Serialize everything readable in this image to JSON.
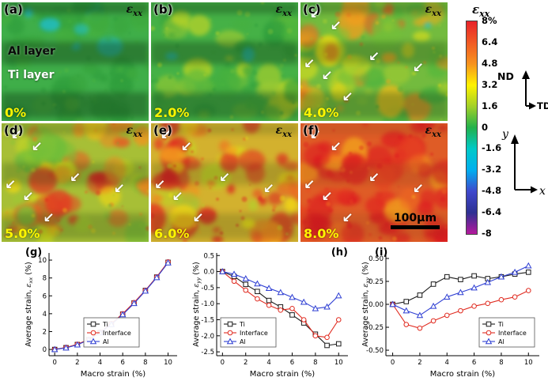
{
  "panels": [
    {
      "letter": "(a)",
      "eps": "ε",
      "eps_sub": "xx",
      "strain": "0%"
    },
    {
      "letter": "(b)",
      "eps": "ε",
      "eps_sub": "xx",
      "strain": "2.0%"
    },
    {
      "letter": "(c)",
      "eps": "ε",
      "eps_sub": "xx",
      "strain": "4.0%"
    },
    {
      "letter": "(d)",
      "eps": "ε",
      "eps_sub": "xx",
      "strain": "5.0%"
    },
    {
      "letter": "(e)",
      "eps": "ε",
      "eps_sub": "xx",
      "strain": "6.0%"
    },
    {
      "letter": "(f)",
      "eps": "ε",
      "eps_sub": "xx",
      "strain": "8.0%"
    }
  ],
  "annotations": {
    "al_layer": "Al layer",
    "ti_layer": "Ti layer",
    "scale_bar": "100μm",
    "arrow_icon": "↙"
  },
  "colorbar": {
    "sym": "ε",
    "sub": "xx",
    "ticks": [
      "8%",
      "6.4",
      "4.8",
      "3.2",
      "1.6",
      "0",
      "-1.6",
      "-3.2",
      "-4.8",
      "-6.4",
      "-8"
    ],
    "colors": [
      "#e8232a",
      "#f15a24",
      "#f7931e",
      "#fff200",
      "#a2d028",
      "#22b14c",
      "#00c9c8",
      "#00aeef",
      "#3f48cc",
      "#2e3192",
      "#b5199d"
    ]
  },
  "axes_legend": {
    "nd": "ND",
    "td": "TD",
    "y": "y",
    "x": "x"
  },
  "chart_data": [
    {
      "id": "g",
      "type": "line",
      "letter": "(g)",
      "letter_pos": "tl",
      "legend_pos": "ml",
      "xlabel": "Macro strain (%)",
      "ylabel_prefix": "Average strain, ",
      "ylabel_sym": "ε",
      "ylabel_sub": "xx",
      "ylabel_suffix": " (%)",
      "x": [
        0,
        1,
        2,
        3,
        4,
        5,
        6,
        7,
        8,
        9,
        10
      ],
      "series": [
        {
          "name": "Ti",
          "color": "#1a1a1a",
          "marker": "square",
          "values": [
            0,
            0.2,
            0.55,
            1.1,
            1.9,
            2.85,
            3.95,
            5.2,
            6.6,
            8.1,
            9.75
          ]
        },
        {
          "name": "Interface",
          "color": "#e02b20",
          "marker": "circle",
          "values": [
            0,
            0.22,
            0.58,
            1.12,
            1.92,
            2.9,
            4.0,
            5.25,
            6.62,
            8.12,
            9.8
          ]
        },
        {
          "name": "Al",
          "color": "#2f3fd3",
          "marker": "triangle",
          "values": [
            0,
            0.18,
            0.52,
            1.08,
            1.88,
            2.8,
            3.9,
            5.15,
            6.55,
            8.05,
            9.7
          ]
        }
      ],
      "xlim": [
        -0.5,
        10.8
      ],
      "ylim": [
        -0.7,
        10.8
      ],
      "xtick_vals": [
        0,
        2,
        4,
        6,
        8,
        10
      ],
      "xtick_labels": [
        "0",
        "2",
        "4",
        "6",
        "8",
        "10"
      ],
      "ytick_vals": [
        0,
        2,
        4,
        6,
        8,
        10
      ],
      "ytick_labels": [
        "0",
        "2",
        "4",
        "6",
        "8",
        "10"
      ],
      "grid": false,
      "legend_position": "center-left-lower"
    },
    {
      "id": "h",
      "type": "line",
      "letter": "(h)",
      "letter_pos": "tr",
      "legend_pos": "bl",
      "xlabel": "Macro strain (%)",
      "ylabel_prefix": "Average strain, ",
      "ylabel_sym": "ε",
      "ylabel_sub": "yy",
      "ylabel_suffix": " (%)",
      "x": [
        0,
        1,
        2,
        3,
        4,
        5,
        6,
        7,
        8,
        9,
        10
      ],
      "series": [
        {
          "name": "Ti",
          "color": "#1a1a1a",
          "marker": "square",
          "values": [
            0,
            -0.15,
            -0.4,
            -0.62,
            -0.9,
            -1.1,
            -1.35,
            -1.6,
            -1.95,
            -2.3,
            -2.25
          ]
        },
        {
          "name": "Interface",
          "color": "#e02b20",
          "marker": "circle",
          "values": [
            0,
            -0.3,
            -0.58,
            -0.85,
            -1.05,
            -1.2,
            -1.15,
            -1.5,
            -2.0,
            -2.05,
            -1.5
          ]
        },
        {
          "name": "Al",
          "color": "#2f3fd3",
          "marker": "triangle",
          "values": [
            0,
            -0.08,
            -0.22,
            -0.38,
            -0.52,
            -0.65,
            -0.8,
            -0.95,
            -1.15,
            -1.1,
            -0.75
          ]
        }
      ],
      "xlim": [
        -0.5,
        10.8
      ],
      "ylim": [
        -2.62,
        0.58
      ],
      "xtick_vals": [
        0,
        2,
        4,
        6,
        8,
        10
      ],
      "xtick_labels": [
        "0",
        "2",
        "4",
        "6",
        "8",
        "10"
      ],
      "ytick_vals": [
        0.5,
        0.0,
        -0.5,
        -1.0,
        -1.5,
        -2.0,
        -2.5
      ],
      "ytick_labels": [
        "0.5",
        "0.0",
        "-0.5",
        "-1.0",
        "-1.5",
        "-2.0",
        "-2.5"
      ],
      "grid": false,
      "legend_position": "lower-left"
    },
    {
      "id": "i",
      "type": "line",
      "letter": "(i)",
      "letter_pos": "tl-inset",
      "legend_pos": "br",
      "xlabel": "Macro strain (%)",
      "ylabel_prefix": "Average strain, ",
      "ylabel_sym": "ε",
      "ylabel_sub": "xy",
      "ylabel_suffix": " (%)",
      "x": [
        0,
        1,
        2,
        3,
        4,
        5,
        6,
        7,
        8,
        9,
        10
      ],
      "series": [
        {
          "name": "Ti",
          "color": "#1a1a1a",
          "marker": "square",
          "values": [
            0,
            0.03,
            0.1,
            0.22,
            0.3,
            0.27,
            0.31,
            0.28,
            0.3,
            0.33,
            0.35
          ]
        },
        {
          "name": "Interface",
          "color": "#e02b20",
          "marker": "circle",
          "values": [
            0,
            -0.22,
            -0.26,
            -0.18,
            -0.12,
            -0.07,
            -0.02,
            0.01,
            0.05,
            0.08,
            0.15
          ]
        },
        {
          "name": "Al",
          "color": "#2f3fd3",
          "marker": "triangle",
          "values": [
            0,
            -0.07,
            -0.12,
            -0.02,
            0.08,
            0.13,
            0.18,
            0.24,
            0.3,
            0.35,
            0.42
          ]
        }
      ],
      "xlim": [
        -0.5,
        10.8
      ],
      "ylim": [
        -0.56,
        0.56
      ],
      "xtick_vals": [
        0,
        2,
        4,
        6,
        8,
        10
      ],
      "xtick_labels": [
        "0",
        "2",
        "4",
        "6",
        "8",
        "10"
      ],
      "ytick_vals": [
        0.5,
        0.25,
        0.0,
        -0.25,
        -0.5
      ],
      "ytick_labels": [
        "0.50",
        "0.25",
        "0.00",
        "-0.25",
        "-0.50"
      ],
      "grid": false,
      "legend_position": "lower-right"
    }
  ]
}
